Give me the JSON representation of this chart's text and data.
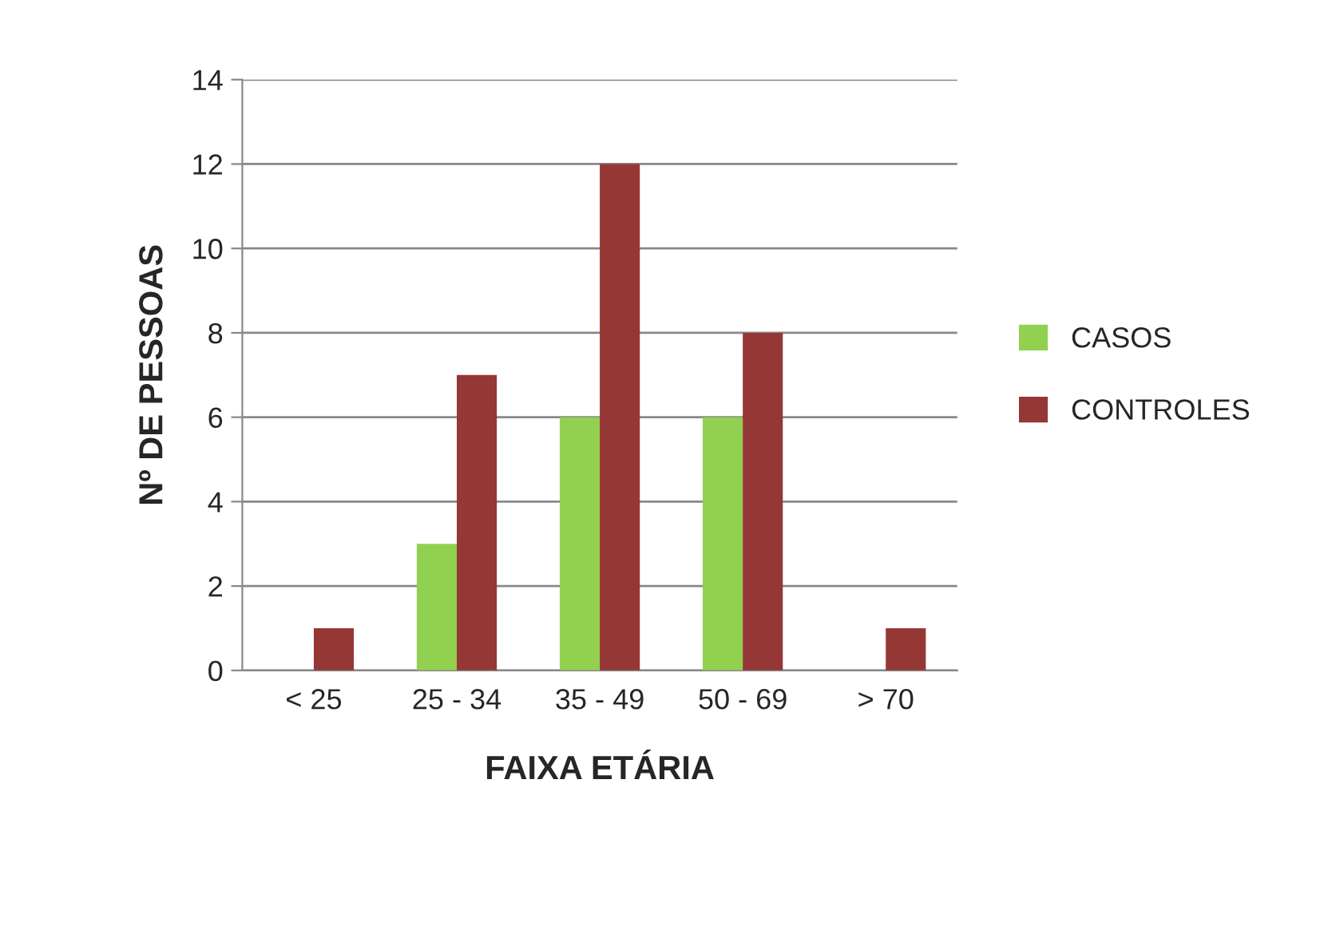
{
  "chart_data": {
    "type": "bar",
    "xlabel": "FAIXA ETÁRIA",
    "ylabel": "Nº DE PESSOAS",
    "categories": [
      "< 25",
      "25 - 34",
      "35 - 49",
      "50 - 69",
      "> 70"
    ],
    "series": [
      {
        "name": "CASOS",
        "color": "#92d050",
        "values": [
          0,
          3,
          6,
          6,
          0
        ]
      },
      {
        "name": "CONTROLES",
        "color": "#953735",
        "values": [
          1,
          7,
          12,
          8,
          1
        ]
      }
    ],
    "ylim": [
      0,
      14
    ],
    "yticks": [
      0,
      2,
      4,
      6,
      8,
      10,
      12,
      14
    ],
    "grid": "y",
    "legend": "right"
  }
}
